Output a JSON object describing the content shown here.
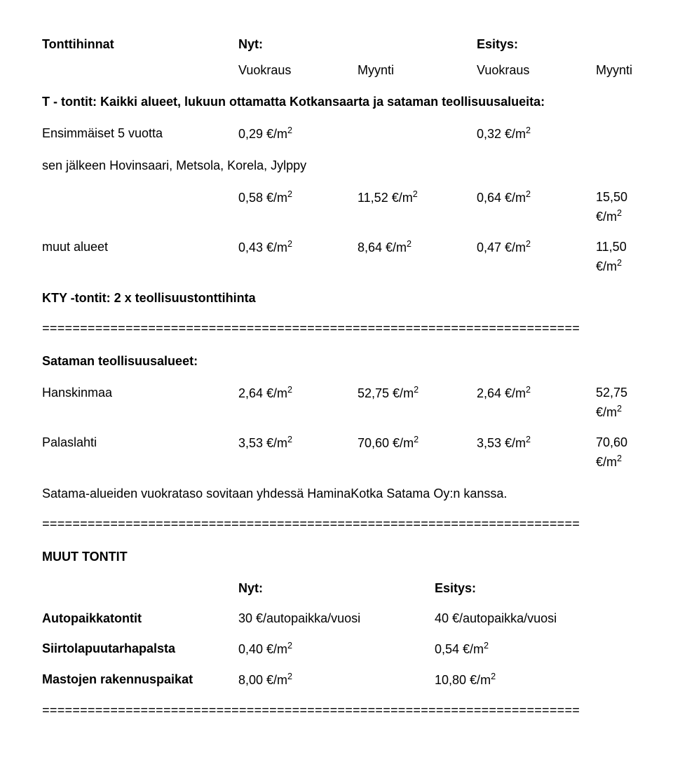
{
  "header": {
    "title": "Tonttihinnat",
    "nyt": "Nyt:",
    "esitys": "Esitys:",
    "sub_vuokraus": "Vuokraus",
    "sub_myynti": "Myynti"
  },
  "section1": {
    "intro": "T - tontit: Kaikki alueet, lukuun ottamatta Kotkansaarta ja sataman teollisuusalueita:",
    "row1_label": "Ensimmäiset 5 vuotta",
    "row1_c2": "0,29 €/m²",
    "row1_c4": "0,32 €/m²",
    "row2_label": "sen jälkeen Hovinsaari, Metsola, Korela, Jylppy",
    "row2_c2": "0,58 €/m²",
    "row2_c3": "11,52 €/m²",
    "row2_c4": "0,64 €/m²",
    "row2_c5": "15,50 €/m²",
    "row3_label": "muut alueet",
    "row3_c2": "0,43 €/m²",
    "row3_c3": "8,64 €/m²",
    "row3_c4": "0,47 €/m²",
    "row3_c5": "11,50 €/m²",
    "kty": "KTY -tontit:  2 x teollisuustonttihinta"
  },
  "divider": "=======================================================================",
  "section2": {
    "title": "Sataman teollisuusalueet:",
    "r1_label": "Hanskinmaa",
    "r1_c2": "2,64 €/m²",
    "r1_c3": "52,75 €/m²",
    "r1_c4": "2,64 €/m²",
    "r1_c5": "52,75 €/m²",
    "r2_label": "Palaslahti",
    "r2_c2": "3,53 €/m²",
    "r2_c3": "70,60 €/m²",
    "r2_c4": "3,53 €/m²",
    "r2_c5": "70,60 €/m²",
    "note": "Satama-alueiden vuokrataso sovitaan yhdessä HaminaKotka Satama Oy:n kanssa."
  },
  "section3": {
    "title": "MUUT TONTIT",
    "nyt": "Nyt:",
    "esitys": "Esitys:",
    "r1_label": "Autopaikkatontit",
    "r1_c2": "30 €/autopaikka/vuosi",
    "r1_c3": "40 €/autopaikka/vuosi",
    "r2_label": "Siirtolapuutarhapalsta",
    "r2_c2": "0,40 €/m²",
    "r2_c3": "0,54 €/m²",
    "r3_label": "Mastojen rakennuspaikat",
    "r3_c2": "8,00 €/m²",
    "r3_c3": "10,80 €/m²"
  }
}
